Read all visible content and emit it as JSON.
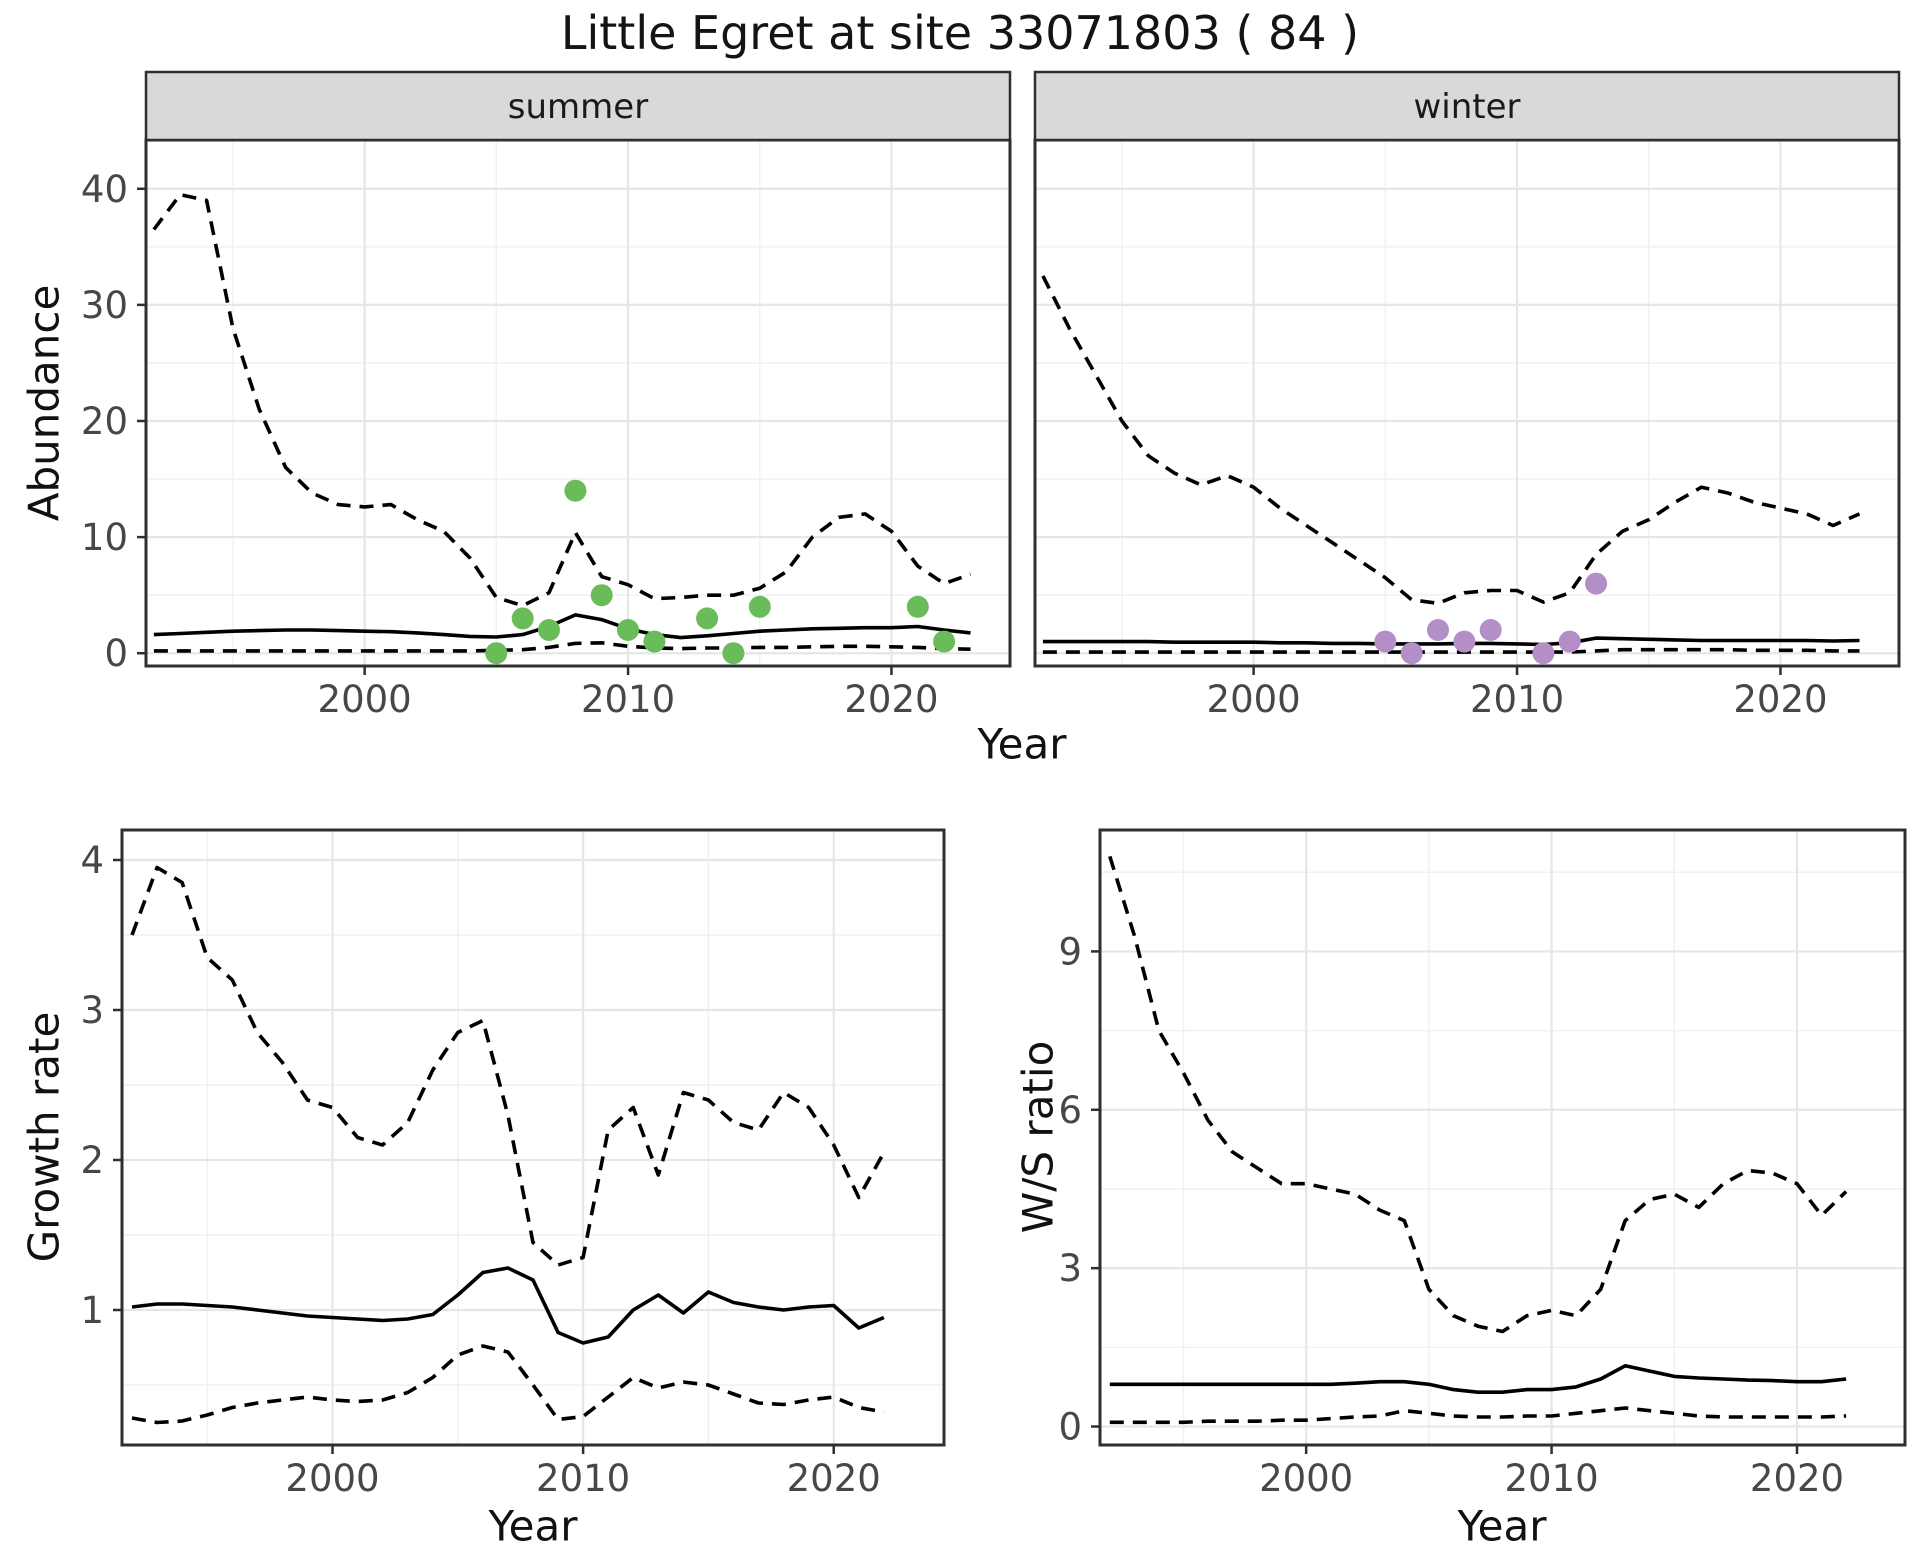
{
  "title": "Little Egret at site 33071803 ( 84 )",
  "facets": [
    {
      "label": "summer"
    },
    {
      "label": "winter"
    }
  ],
  "labels": {
    "abundance_y": "Abundance",
    "growth_y": "Growth rate",
    "ws_y": "W/S ratio",
    "year_top": "Year",
    "year_growth": "Year",
    "year_ws": "Year"
  },
  "colors": {
    "summer_point": "#6abc5a",
    "winter_point": "#b48ec6",
    "strip_bg": "#d9d9d9",
    "grid_major": "#e6e6e6",
    "grid_minor": "#f1f1f1",
    "panel_border": "#2f2f2f",
    "tick_text": "#474747",
    "line": "#000000"
  },
  "chart_data": [
    {
      "id": "abundance-summer",
      "type": "line",
      "facet": "summer",
      "xlabel": "Year",
      "ylabel": "Abundance",
      "x_ticks": [
        2000,
        2010,
        2020
      ],
      "x_minor_ticks": [
        1995,
        2005,
        2015
      ],
      "y_ticks": [
        0,
        10,
        20,
        30,
        40
      ],
      "y_minor_ticks": [
        5,
        15,
        25,
        35
      ],
      "xlim": [
        1991.7,
        2024.5
      ],
      "ylim": [
        -1.1,
        44.2
      ],
      "years": [
        1992,
        1993,
        1994,
        1995,
        1996,
        1997,
        1998,
        1999,
        2000,
        2001,
        2002,
        2003,
        2004,
        2005,
        2006,
        2007,
        2008,
        2009,
        2010,
        2011,
        2012,
        2013,
        2014,
        2015,
        2016,
        2017,
        2018,
        2019,
        2020,
        2021,
        2022,
        2023
      ],
      "series": [
        {
          "name": "upper-95ci",
          "style": "dashed",
          "values": [
            36.5,
            39.5,
            39,
            28,
            21,
            16,
            13.8,
            12.8,
            12.6,
            12.8,
            11.5,
            10.5,
            8.2,
            4.8,
            4.1,
            5.2,
            10.4,
            6.6,
            5.9,
            4.7,
            4.8,
            5.0,
            5.0,
            5.6,
            7.0,
            10.0,
            11.7,
            12.0,
            10.5,
            7.5,
            6.0,
            6.8
          ]
        },
        {
          "name": "mean",
          "style": "solid",
          "values": [
            1.6,
            1.7,
            1.8,
            1.9,
            1.95,
            2.0,
            2.0,
            1.95,
            1.9,
            1.85,
            1.75,
            1.6,
            1.45,
            1.4,
            1.6,
            2.3,
            3.3,
            2.9,
            2.1,
            1.6,
            1.35,
            1.5,
            1.7,
            1.9,
            2.0,
            2.1,
            2.15,
            2.2,
            2.2,
            2.3,
            2.0,
            1.75
          ]
        },
        {
          "name": "lower-95ci",
          "style": "dashed",
          "values": [
            0.2,
            0.2,
            0.2,
            0.2,
            0.2,
            0.2,
            0.2,
            0.2,
            0.2,
            0.2,
            0.2,
            0.2,
            0.2,
            0.25,
            0.3,
            0.5,
            0.85,
            0.9,
            0.6,
            0.45,
            0.4,
            0.45,
            0.45,
            0.5,
            0.5,
            0.55,
            0.6,
            0.6,
            0.55,
            0.5,
            0.4,
            0.35
          ]
        }
      ],
      "points": {
        "name": "observed-counts",
        "color": "#6abc5a",
        "years": [
          2005,
          2006,
          2007,
          2008,
          2009,
          2010,
          2011,
          2013,
          2014,
          2015,
          2021,
          2022
        ],
        "values": [
          0,
          3,
          2,
          14,
          5,
          2,
          1,
          3,
          0,
          4,
          4,
          1
        ]
      }
    },
    {
      "id": "abundance-winter",
      "type": "line",
      "facet": "winter",
      "xlabel": "Year",
      "ylabel": "Abundance",
      "x_ticks": [
        2000,
        2010,
        2020
      ],
      "x_minor_ticks": [
        1995,
        2005,
        2015
      ],
      "y_ticks": [
        0,
        10,
        20,
        30,
        40
      ],
      "y_minor_ticks": [
        5,
        15,
        25,
        35
      ],
      "xlim": [
        1991.7,
        2024.5
      ],
      "ylim": [
        -1.1,
        44.2
      ],
      "years": [
        1992,
        1993,
        1994,
        1995,
        1996,
        1997,
        1998,
        1999,
        2000,
        2001,
        2002,
        2003,
        2004,
        2005,
        2006,
        2007,
        2008,
        2009,
        2010,
        2011,
        2012,
        2013,
        2014,
        2015,
        2016,
        2017,
        2018,
        2019,
        2020,
        2021,
        2022,
        2023
      ],
      "series": [
        {
          "name": "upper-95ci",
          "style": "dashed",
          "values": [
            32.5,
            28,
            24,
            20,
            17,
            15.5,
            14.5,
            15.3,
            14.3,
            12.5,
            11,
            9.5,
            8,
            6.5,
            4.6,
            4.3,
            5.2,
            5.4,
            5.4,
            4.4,
            5.2,
            8.5,
            10.5,
            11.5,
            13,
            14.3,
            13.8,
            13,
            12.5,
            12,
            11,
            12
          ]
        },
        {
          "name": "mean",
          "style": "solid",
          "values": [
            1.0,
            1.0,
            1.0,
            1.0,
            1.0,
            0.95,
            0.95,
            0.95,
            0.95,
            0.9,
            0.9,
            0.85,
            0.85,
            0.8,
            0.8,
            0.8,
            0.85,
            0.85,
            0.8,
            0.75,
            0.9,
            1.3,
            1.25,
            1.2,
            1.15,
            1.1,
            1.1,
            1.1,
            1.1,
            1.1,
            1.05,
            1.1
          ]
        },
        {
          "name": "lower-95ci",
          "style": "dashed",
          "values": [
            0.1,
            0.1,
            0.1,
            0.1,
            0.1,
            0.1,
            0.1,
            0.1,
            0.1,
            0.1,
            0.1,
            0.1,
            0.1,
            0.1,
            0.1,
            0.1,
            0.1,
            0.1,
            0.1,
            0.1,
            0.1,
            0.2,
            0.3,
            0.3,
            0.3,
            0.3,
            0.3,
            0.25,
            0.25,
            0.25,
            0.2,
            0.2
          ]
        }
      ],
      "points": {
        "name": "observed-counts",
        "color": "#b48ec6",
        "years": [
          2005,
          2006,
          2007,
          2008,
          2009,
          2011,
          2012,
          2013
        ],
        "values": [
          1,
          0,
          2,
          1,
          2,
          0,
          1,
          6
        ]
      }
    },
    {
      "id": "growth-rate",
      "type": "line",
      "facet": null,
      "xlabel": "Year",
      "ylabel": "Growth rate",
      "x_ticks": [
        2000,
        2010,
        2020
      ],
      "x_minor_ticks": [
        1995,
        2005,
        2015
      ],
      "y_ticks": [
        1,
        2,
        3,
        4
      ],
      "y_minor_ticks": [
        0.5,
        1.5,
        2.5,
        3.5
      ],
      "xlim": [
        1991.6,
        2024.4
      ],
      "ylim": [
        0.1,
        4.2
      ],
      "years": [
        1992,
        1993,
        1994,
        1995,
        1996,
        1997,
        1998,
        1999,
        2000,
        2001,
        2002,
        2003,
        2004,
        2005,
        2006,
        2007,
        2008,
        2009,
        2010,
        2011,
        2012,
        2013,
        2014,
        2015,
        2016,
        2017,
        2018,
        2019,
        2020,
        2021,
        2022
      ],
      "series": [
        {
          "name": "upper-95ci",
          "style": "dashed",
          "values": [
            3.5,
            3.95,
            3.85,
            3.35,
            3.2,
            2.85,
            2.65,
            2.4,
            2.35,
            2.15,
            2.1,
            2.25,
            2.6,
            2.85,
            2.93,
            2.3,
            1.45,
            1.3,
            1.35,
            2.2,
            2.35,
            1.9,
            2.45,
            2.4,
            2.25,
            2.2,
            2.45,
            2.35,
            2.1,
            1.75,
            2.05
          ]
        },
        {
          "name": "mean",
          "style": "solid",
          "values": [
            1.02,
            1.04,
            1.04,
            1.03,
            1.02,
            1.0,
            0.98,
            0.96,
            0.95,
            0.94,
            0.93,
            0.94,
            0.97,
            1.1,
            1.25,
            1.28,
            1.2,
            0.85,
            0.78,
            0.82,
            1.0,
            1.1,
            0.98,
            1.12,
            1.05,
            1.02,
            1.0,
            1.02,
            1.03,
            0.88,
            0.95
          ]
        },
        {
          "name": "lower-95ci",
          "style": "dashed",
          "values": [
            0.28,
            0.25,
            0.26,
            0.3,
            0.35,
            0.38,
            0.4,
            0.42,
            0.4,
            0.39,
            0.4,
            0.45,
            0.55,
            0.7,
            0.76,
            0.72,
            0.5,
            0.27,
            0.29,
            0.42,
            0.55,
            0.48,
            0.52,
            0.5,
            0.44,
            0.38,
            0.37,
            0.4,
            0.42,
            0.35,
            0.32
          ]
        }
      ],
      "points": null
    },
    {
      "id": "ws-ratio",
      "type": "line",
      "facet": null,
      "xlabel": "Year",
      "ylabel": "W/S ratio",
      "x_ticks": [
        2000,
        2010,
        2020
      ],
      "x_minor_ticks": [
        1995,
        2005,
        2015
      ],
      "y_ticks": [
        0,
        3,
        6,
        9
      ],
      "y_minor_ticks": [
        1.5,
        4.5,
        7.5,
        10.5
      ],
      "xlim": [
        1991.6,
        2024.4
      ],
      "ylim": [
        -0.35,
        11.3
      ],
      "years": [
        1992,
        1993,
        1994,
        1995,
        1996,
        1997,
        1998,
        1999,
        2000,
        2001,
        2002,
        2003,
        2004,
        2005,
        2006,
        2007,
        2008,
        2009,
        2010,
        2011,
        2012,
        2013,
        2014,
        2015,
        2016,
        2017,
        2018,
        2019,
        2020,
        2021,
        2022
      ],
      "series": [
        {
          "name": "upper-95ci",
          "style": "dashed",
          "values": [
            10.8,
            9.3,
            7.5,
            6.7,
            5.8,
            5.2,
            4.9,
            4.6,
            4.6,
            4.5,
            4.4,
            4.1,
            3.9,
            2.6,
            2.1,
            1.9,
            1.8,
            2.1,
            2.2,
            2.1,
            2.6,
            3.9,
            4.3,
            4.4,
            4.15,
            4.6,
            4.85,
            4.8,
            4.6,
            4.0,
            4.45
          ]
        },
        {
          "name": "mean",
          "style": "solid",
          "values": [
            0.8,
            0.8,
            0.8,
            0.8,
            0.8,
            0.8,
            0.8,
            0.8,
            0.8,
            0.8,
            0.82,
            0.85,
            0.85,
            0.8,
            0.7,
            0.65,
            0.65,
            0.7,
            0.7,
            0.75,
            0.9,
            1.15,
            1.05,
            0.95,
            0.92,
            0.9,
            0.88,
            0.87,
            0.85,
            0.85,
            0.9
          ]
        },
        {
          "name": "lower-95ci",
          "style": "dashed",
          "values": [
            0.08,
            0.08,
            0.08,
            0.08,
            0.1,
            0.1,
            0.1,
            0.12,
            0.12,
            0.15,
            0.18,
            0.2,
            0.3,
            0.25,
            0.2,
            0.18,
            0.18,
            0.2,
            0.2,
            0.25,
            0.3,
            0.35,
            0.3,
            0.25,
            0.2,
            0.18,
            0.18,
            0.18,
            0.18,
            0.18,
            0.2
          ]
        }
      ],
      "points": null
    }
  ]
}
